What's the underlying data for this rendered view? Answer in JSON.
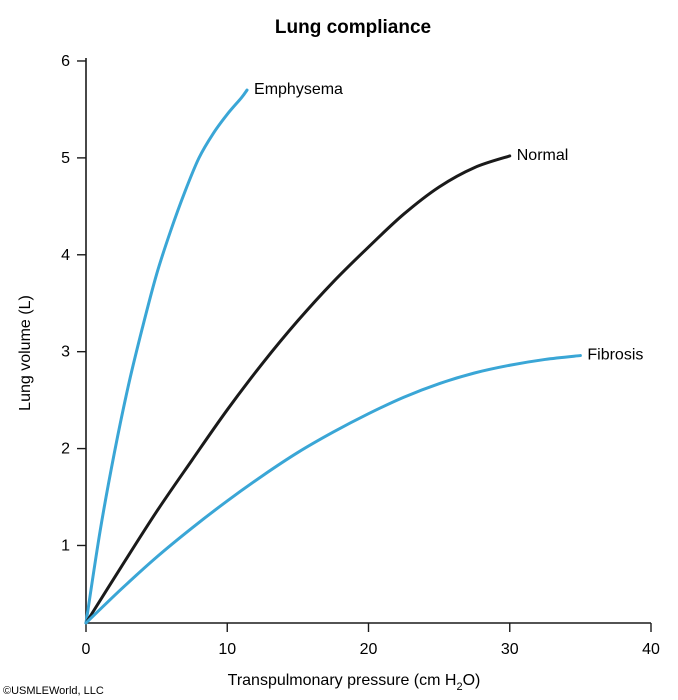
{
  "chart_data": {
    "type": "line",
    "title": "Lung compliance",
    "xlabel": {
      "prefix": "Transpulmonary pressure (cm H",
      "subscript": "2",
      "suffix": "O)"
    },
    "ylabel": "Lung volume (L)",
    "xlim": [
      0,
      40
    ],
    "ylim": [
      0.2,
      6
    ],
    "xticks": [
      0,
      10,
      20,
      30,
      40
    ],
    "yticks": [
      1,
      2,
      3,
      4,
      5,
      6
    ],
    "grid": false,
    "series": [
      {
        "name": "Emphysema",
        "color": "#3aa6d6",
        "x": [
          0,
          1,
          2,
          3,
          4,
          5,
          6,
          7,
          8,
          9,
          10,
          11,
          11.4
        ],
        "y": [
          0.2,
          1.15,
          1.95,
          2.65,
          3.25,
          3.8,
          4.25,
          4.65,
          5.0,
          5.25,
          5.45,
          5.62,
          5.7
        ]
      },
      {
        "name": "Normal",
        "color": "#1a1a1a",
        "x": [
          0,
          2.5,
          5,
          7.5,
          10,
          12.5,
          15,
          17.5,
          20,
          22.5,
          25,
          27.5,
          30
        ],
        "y": [
          0.2,
          0.78,
          1.35,
          1.88,
          2.4,
          2.88,
          3.32,
          3.72,
          4.08,
          4.42,
          4.7,
          4.9,
          5.02
        ]
      },
      {
        "name": "Fibrosis",
        "color": "#3aa6d6",
        "x": [
          0,
          2.5,
          5,
          7.5,
          10,
          12.5,
          15,
          17.5,
          20,
          22.5,
          25,
          27.5,
          30,
          32.5,
          35
        ],
        "y": [
          0.2,
          0.55,
          0.88,
          1.18,
          1.46,
          1.72,
          1.96,
          2.17,
          2.36,
          2.53,
          2.67,
          2.78,
          2.86,
          2.92,
          2.96
        ]
      }
    ]
  },
  "copyright": "©USMLEWorld, LLC"
}
